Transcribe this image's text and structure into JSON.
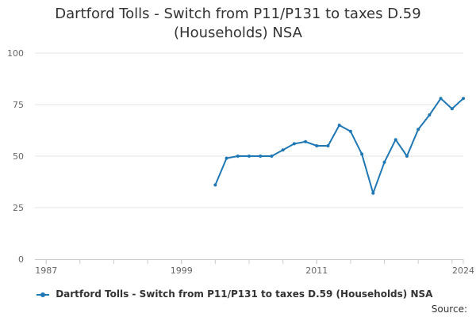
{
  "chart_data": {
    "type": "line",
    "title_lines": [
      "Dartford Tolls - Switch from P11/P131 to taxes D.59",
      "(Households) NSA"
    ],
    "xlabel": "",
    "ylabel": "",
    "xlim": [
      1986,
      2024
    ],
    "ylim": [
      0,
      100
    ],
    "x_ticks": [
      "1987",
      "1999",
      "2011",
      "2024"
    ],
    "y_ticks": [
      "0",
      "25",
      "50",
      "75",
      "100"
    ],
    "grid": "horizontal",
    "legend_position": "bottom",
    "series": [
      {
        "name": "Dartford Tolls - Switch from P11/P131 to taxes D.59 (Households) NSA",
        "color": "#1f77b4",
        "x": [
          2002,
          2003,
          2004,
          2005,
          2006,
          2007,
          2008,
          2009,
          2010,
          2011,
          2012,
          2013,
          2014,
          2015,
          2016,
          2017,
          2018,
          2019,
          2020,
          2021,
          2022,
          2023,
          2024
        ],
        "y": [
          36,
          49,
          50,
          50,
          50,
          50,
          53,
          56,
          57,
          55,
          55,
          65,
          62,
          51,
          32,
          47,
          58,
          50,
          63,
          70,
          78,
          73,
          78
        ]
      }
    ]
  },
  "source_label": "Source:"
}
